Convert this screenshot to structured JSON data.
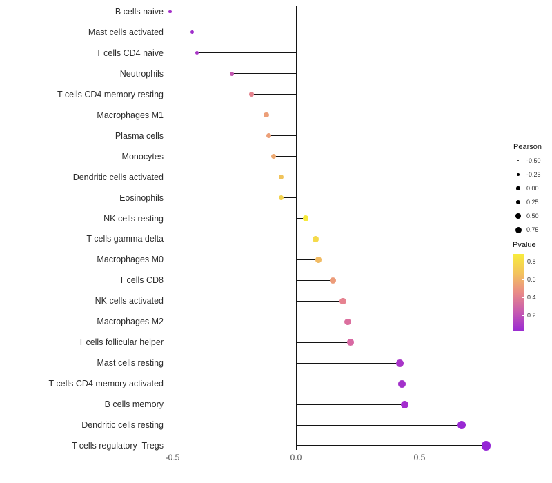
{
  "chart_data": {
    "type": "lollipop",
    "title": "",
    "xlabel": "",
    "ylabel": "",
    "x_axis": {
      "tick_labels": [
        "-0.5",
        "0.0",
        "0.5"
      ],
      "tick_values": [
        -0.5,
        0.0,
        0.5
      ],
      "range": [
        -0.62,
        0.88
      ]
    },
    "points": [
      {
        "label": "B cells naive",
        "pearson": -0.51,
        "color": "#A42FC8"
      },
      {
        "label": "Mast cells activated",
        "pearson": -0.42,
        "color": "#9F2DCB"
      },
      {
        "label": "T cells CD4 naive",
        "pearson": -0.4,
        "color": "#A835C5"
      },
      {
        "label": "Neutrophils",
        "pearson": -0.26,
        "color": "#C357B1"
      },
      {
        "label": "T cells CD4 memory resting",
        "pearson": -0.18,
        "color": "#E4838E"
      },
      {
        "label": "Macrophages M1",
        "pearson": -0.12,
        "color": "#EC9F78"
      },
      {
        "label": "Plasma cells",
        "pearson": -0.11,
        "color": "#EC9F78"
      },
      {
        "label": "Monocytes",
        "pearson": -0.09,
        "color": "#EEA970"
      },
      {
        "label": "Dendritic cells activated",
        "pearson": -0.06,
        "color": "#F0C35C"
      },
      {
        "label": "Eosinophils",
        "pearson": -0.06,
        "color": "#F2D24E"
      },
      {
        "label": "NK cells resting",
        "pearson": 0.04,
        "color": "#F6E93B"
      },
      {
        "label": "T cells gamma delta",
        "pearson": 0.08,
        "color": "#F5DA4A"
      },
      {
        "label": "Macrophages M0",
        "pearson": 0.09,
        "color": "#F1BB63"
      },
      {
        "label": "T cells CD8",
        "pearson": 0.15,
        "color": "#EC9C7A"
      },
      {
        "label": "NK cells activated",
        "pearson": 0.19,
        "color": "#E68290"
      },
      {
        "label": "Macrophages M2",
        "pearson": 0.21,
        "color": "#DB6F9E"
      },
      {
        "label": "T cells follicular helper",
        "pearson": 0.22,
        "color": "#D869A3"
      },
      {
        "label": "Mast cells resting",
        "pearson": 0.42,
        "color": "#A835C8"
      },
      {
        "label": "T cells CD4 memory activated",
        "pearson": 0.43,
        "color": "#A231CA"
      },
      {
        "label": "B cells memory",
        "pearson": 0.44,
        "color": "#A42DCE"
      },
      {
        "label": "Dendritic cells resting",
        "pearson": 0.67,
        "color": "#9929D3"
      },
      {
        "label": "T cells regulatory  Tregs",
        "pearson": 0.77,
        "color": "#9527D6"
      }
    ],
    "legend": {
      "size": {
        "title": "Pearson",
        "entries": [
          {
            "label": "-0.50",
            "value": -0.5
          },
          {
            "label": "-0.25",
            "value": -0.25
          },
          {
            "label": "0.00",
            "value": 0.0
          },
          {
            "label": "0.25",
            "value": 0.25
          },
          {
            "label": "0.50",
            "value": 0.5
          },
          {
            "label": "0.75",
            "value": 0.75
          }
        ]
      },
      "color": {
        "title": "Pvalue",
        "tick_labels": [
          "0.8",
          "0.6",
          "0.4",
          "0.2"
        ],
        "tick_values": [
          0.8,
          0.6,
          0.4,
          0.2
        ],
        "gradient": [
          "#F8EC3C",
          "#F3C35D",
          "#E98B87",
          "#C75BB0",
          "#9A2BD2"
        ]
      }
    }
  }
}
